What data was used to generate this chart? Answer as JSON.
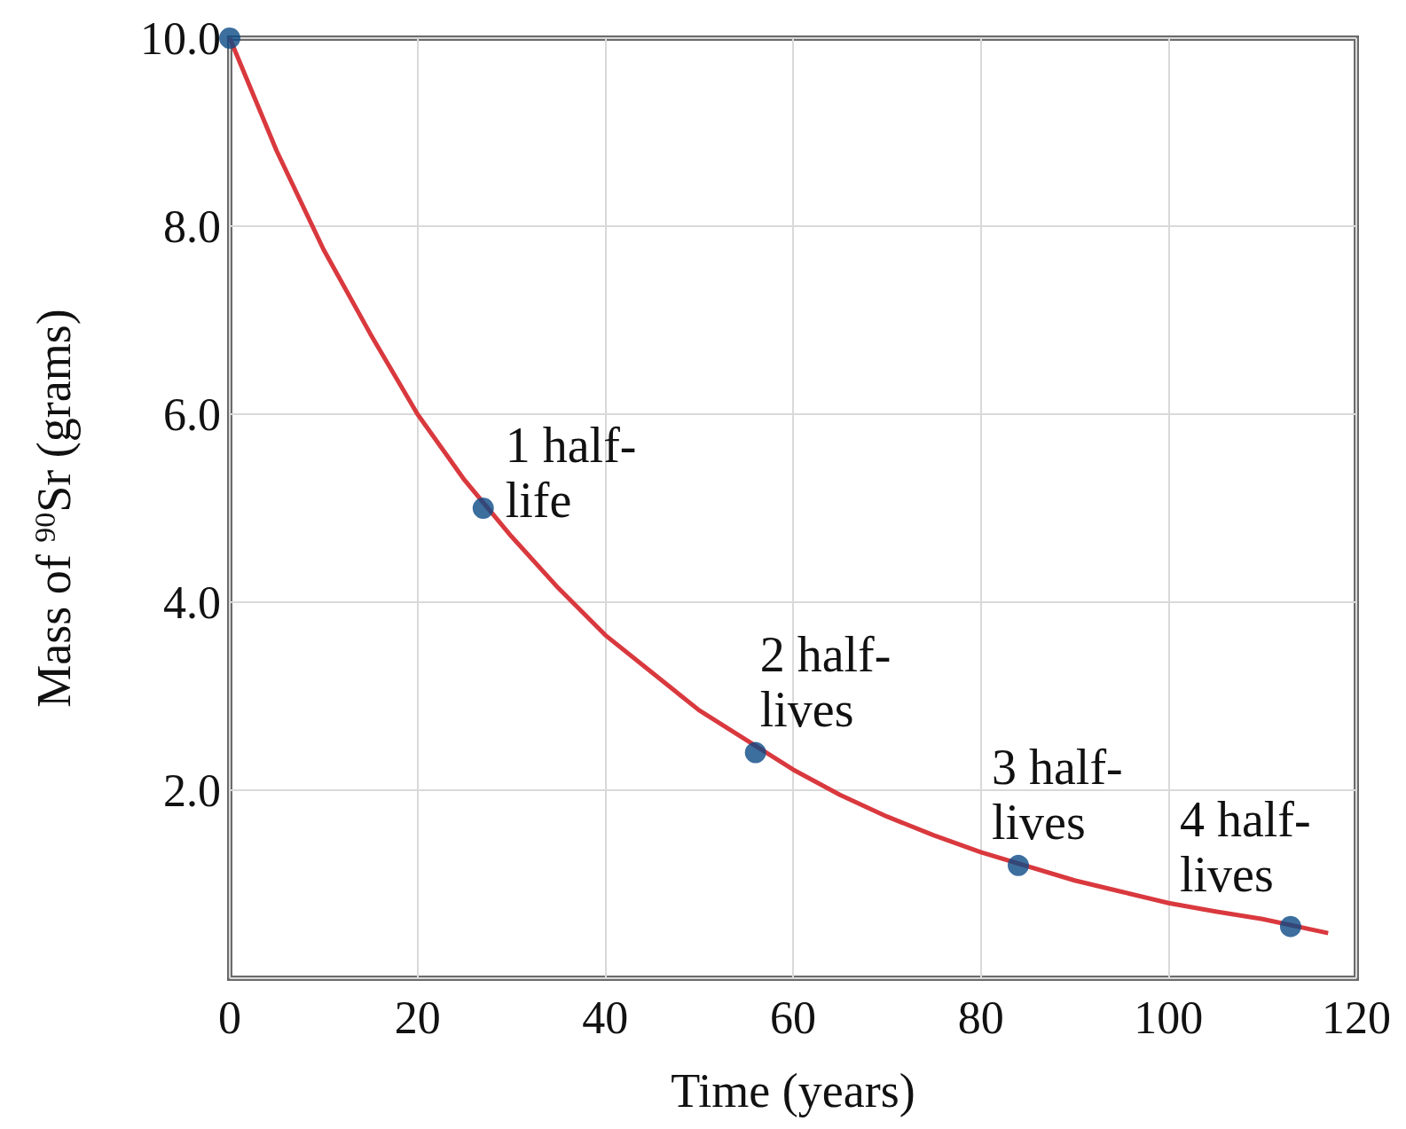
{
  "chart_data": {
    "type": "line",
    "xlabel": "Time (years)",
    "ylabel": "Mass of $^{90}$Sr (grams)",
    "xlim": [
      0,
      120
    ],
    "xticks": [
      0,
      20,
      40,
      60,
      80,
      100,
      120
    ],
    "ylim": [
      0,
      10
    ],
    "yticks": [
      {
        "value": 0,
        "label": null
      },
      {
        "value": 2,
        "label": "2.0"
      },
      {
        "value": 4,
        "label": "4.0"
      },
      {
        "value": 6,
        "label": "6.0"
      },
      {
        "value": 8,
        "label": "8.0"
      },
      {
        "value": 10,
        "label": "10.0"
      }
    ],
    "grid": true,
    "series": [
      {
        "color": "#d9393e",
        "marker": "none",
        "x": [
          0,
          5,
          10,
          15,
          20,
          25,
          30,
          35,
          40,
          45,
          50,
          60,
          65,
          70,
          75,
          80,
          90,
          95,
          100,
          105,
          110,
          117
        ],
        "values": [
          10,
          8.8,
          7.75,
          6.85,
          6.0,
          5.3,
          4.7,
          4.15,
          3.65,
          3.25,
          2.85,
          2.22,
          1.95,
          1.72,
          1.52,
          1.34,
          1.04,
          0.92,
          0.8,
          0.71,
          0.63,
          0.48
        ]
      },
      {
        "type": "scatter",
        "color": "#0b4a86",
        "marker": "circle",
        "x": [
          0,
          27,
          56,
          84,
          113
        ],
        "values": [
          10,
          5.0,
          2.4,
          1.2,
          0.55
        ]
      }
    ],
    "annotations": [
      {
        "text": "1 half-\nlife",
        "x": 27,
        "y": 5.0
      },
      {
        "text": "2 half-\nlives",
        "x": 56,
        "y": 2.4
      },
      {
        "text": "3 half-\nlives",
        "x": 84,
        "y": 1.2
      },
      {
        "text": "4 half-\nlives",
        "x": 113,
        "y": 0.55
      }
    ]
  }
}
